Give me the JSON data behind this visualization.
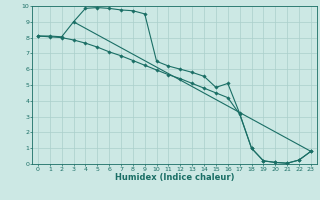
{
  "xlabel": "Humidex (Indice chaleur)",
  "bg_color": "#cce8e4",
  "grid_color": "#aacfcb",
  "line_color": "#1a6e65",
  "xlim": [
    -0.5,
    23.5
  ],
  "ylim": [
    0,
    10
  ],
  "xticks": [
    0,
    1,
    2,
    3,
    4,
    5,
    6,
    7,
    8,
    9,
    10,
    11,
    12,
    13,
    14,
    15,
    16,
    17,
    18,
    19,
    20,
    21,
    22,
    23
  ],
  "yticks": [
    0,
    1,
    2,
    3,
    4,
    5,
    6,
    7,
    8,
    9,
    10
  ],
  "line1_x": [
    0,
    1,
    2,
    3,
    4,
    5,
    6,
    7,
    8,
    9,
    10,
    11,
    12,
    13,
    14,
    15,
    16,
    17,
    18,
    19,
    20,
    21,
    22,
    23
  ],
  "line1_y": [
    8.1,
    8.1,
    8.05,
    9.0,
    9.85,
    9.9,
    9.85,
    9.75,
    9.7,
    9.5,
    6.5,
    6.2,
    6.0,
    5.8,
    5.55,
    4.85,
    5.1,
    3.2,
    1.0,
    0.2,
    0.1,
    0.05,
    0.25,
    0.8
  ],
  "line2_x": [
    0,
    1,
    2,
    3,
    4,
    5,
    6,
    7,
    8,
    9,
    10,
    11,
    12,
    13,
    14,
    15,
    16,
    17,
    18,
    19,
    20,
    21,
    22,
    23
  ],
  "line2_y": [
    8.1,
    8.05,
    8.0,
    7.85,
    7.65,
    7.4,
    7.1,
    6.85,
    6.55,
    6.25,
    5.95,
    5.65,
    5.4,
    5.1,
    4.8,
    4.5,
    4.2,
    3.15,
    1.0,
    0.2,
    0.1,
    0.05,
    0.25,
    0.8
  ],
  "line3_x": [
    3,
    23
  ],
  "line3_y": [
    9.0,
    0.8
  ],
  "marker": "D",
  "markersize": 1.8,
  "linewidth": 0.8,
  "tick_fontsize": 4.5,
  "xlabel_fontsize": 6.0
}
